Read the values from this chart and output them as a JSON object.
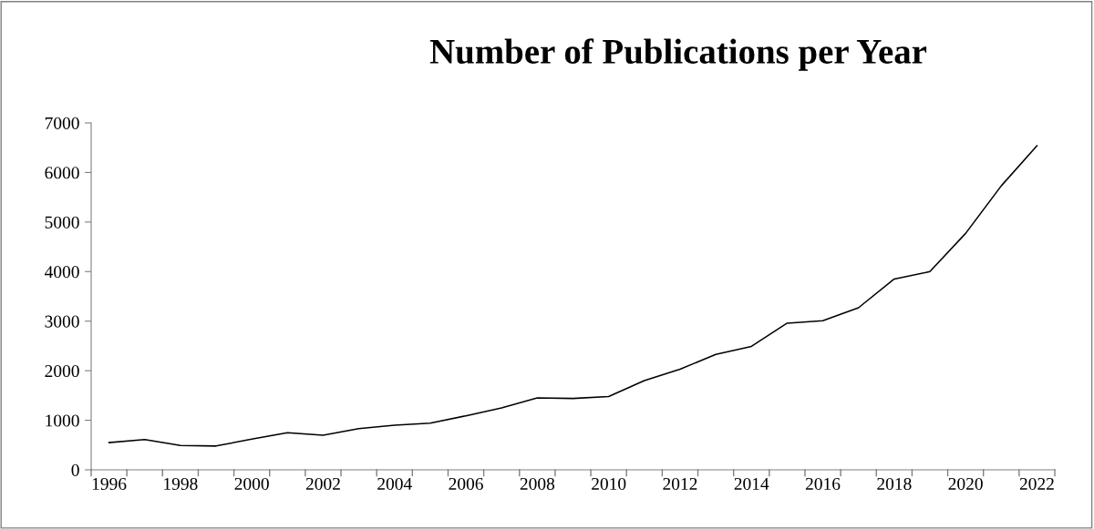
{
  "chart_data": {
    "type": "line",
    "title": "Number of Publications per Year",
    "categories": [
      "1996",
      null,
      "1998",
      null,
      "2000",
      null,
      "2002",
      null,
      "2004",
      null,
      "2006",
      null,
      "2008",
      null,
      "2010",
      null,
      "2012",
      null,
      "2014",
      null,
      "2016",
      null,
      "2018",
      null,
      "2020",
      null,
      "2022"
    ],
    "series": [
      {
        "color": "#000000",
        "values": [
          550,
          610,
          490,
          480,
          620,
          750,
          700,
          830,
          900,
          940,
          1090,
          1250,
          1450,
          1440,
          1480,
          1800,
          2030,
          2330,
          2490,
          2960,
          3010,
          3270,
          3850,
          4000,
          4770,
          5730,
          6540
        ]
      }
    ],
    "ylim": [
      0,
      7000
    ],
    "yticks": [
      0,
      1000,
      2000,
      3000,
      4000,
      5000,
      6000,
      7000
    ],
    "grid": false,
    "legend": false,
    "marker": "none",
    "line_style": "solid"
  }
}
